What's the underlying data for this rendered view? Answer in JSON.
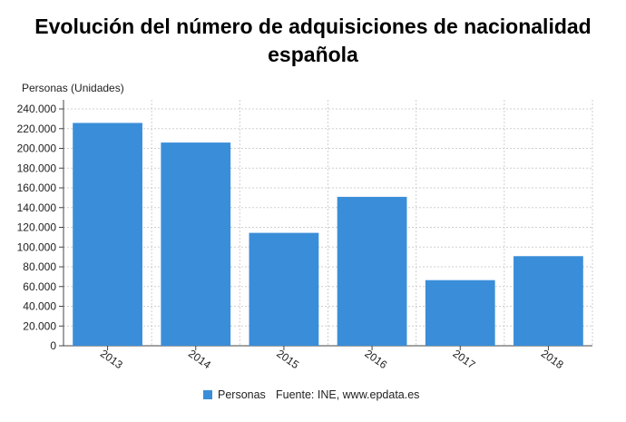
{
  "title": {
    "line1": "Evolución del número de adquisiciones de nacionalidad",
    "line2": "española"
  },
  "colors": {
    "bar": "#3a8ed9",
    "grid": "#cfcfcf",
    "axis": "#444444"
  },
  "footer": {
    "legend_label": "Personas",
    "source": "Fuente: INE, www.epdata.es"
  },
  "chart_data": {
    "type": "bar",
    "title": "Evolución del número de adquisiciones de nacionalidad española",
    "ylabel": "Personas (Unidades)",
    "xlabel": "",
    "categories": [
      "2013",
      "2014",
      "2015",
      "2016",
      "2017",
      "2018"
    ],
    "series": [
      {
        "name": "Personas",
        "values": [
          225800,
          205900,
          114400,
          150900,
          66500,
          90800
        ]
      }
    ],
    "ylim": [
      0,
      240000
    ],
    "yticks": [
      0,
      20000,
      40000,
      60000,
      80000,
      100000,
      120000,
      140000,
      160000,
      180000,
      200000,
      220000,
      240000
    ],
    "ytick_labels": [
      "0",
      "20.000",
      "40.000",
      "60.000",
      "80.000",
      "100.000",
      "120.000",
      "140.000",
      "160.000",
      "180.000",
      "200.000",
      "220.000",
      "240.000"
    ],
    "grid": true,
    "legend": "bottom"
  }
}
